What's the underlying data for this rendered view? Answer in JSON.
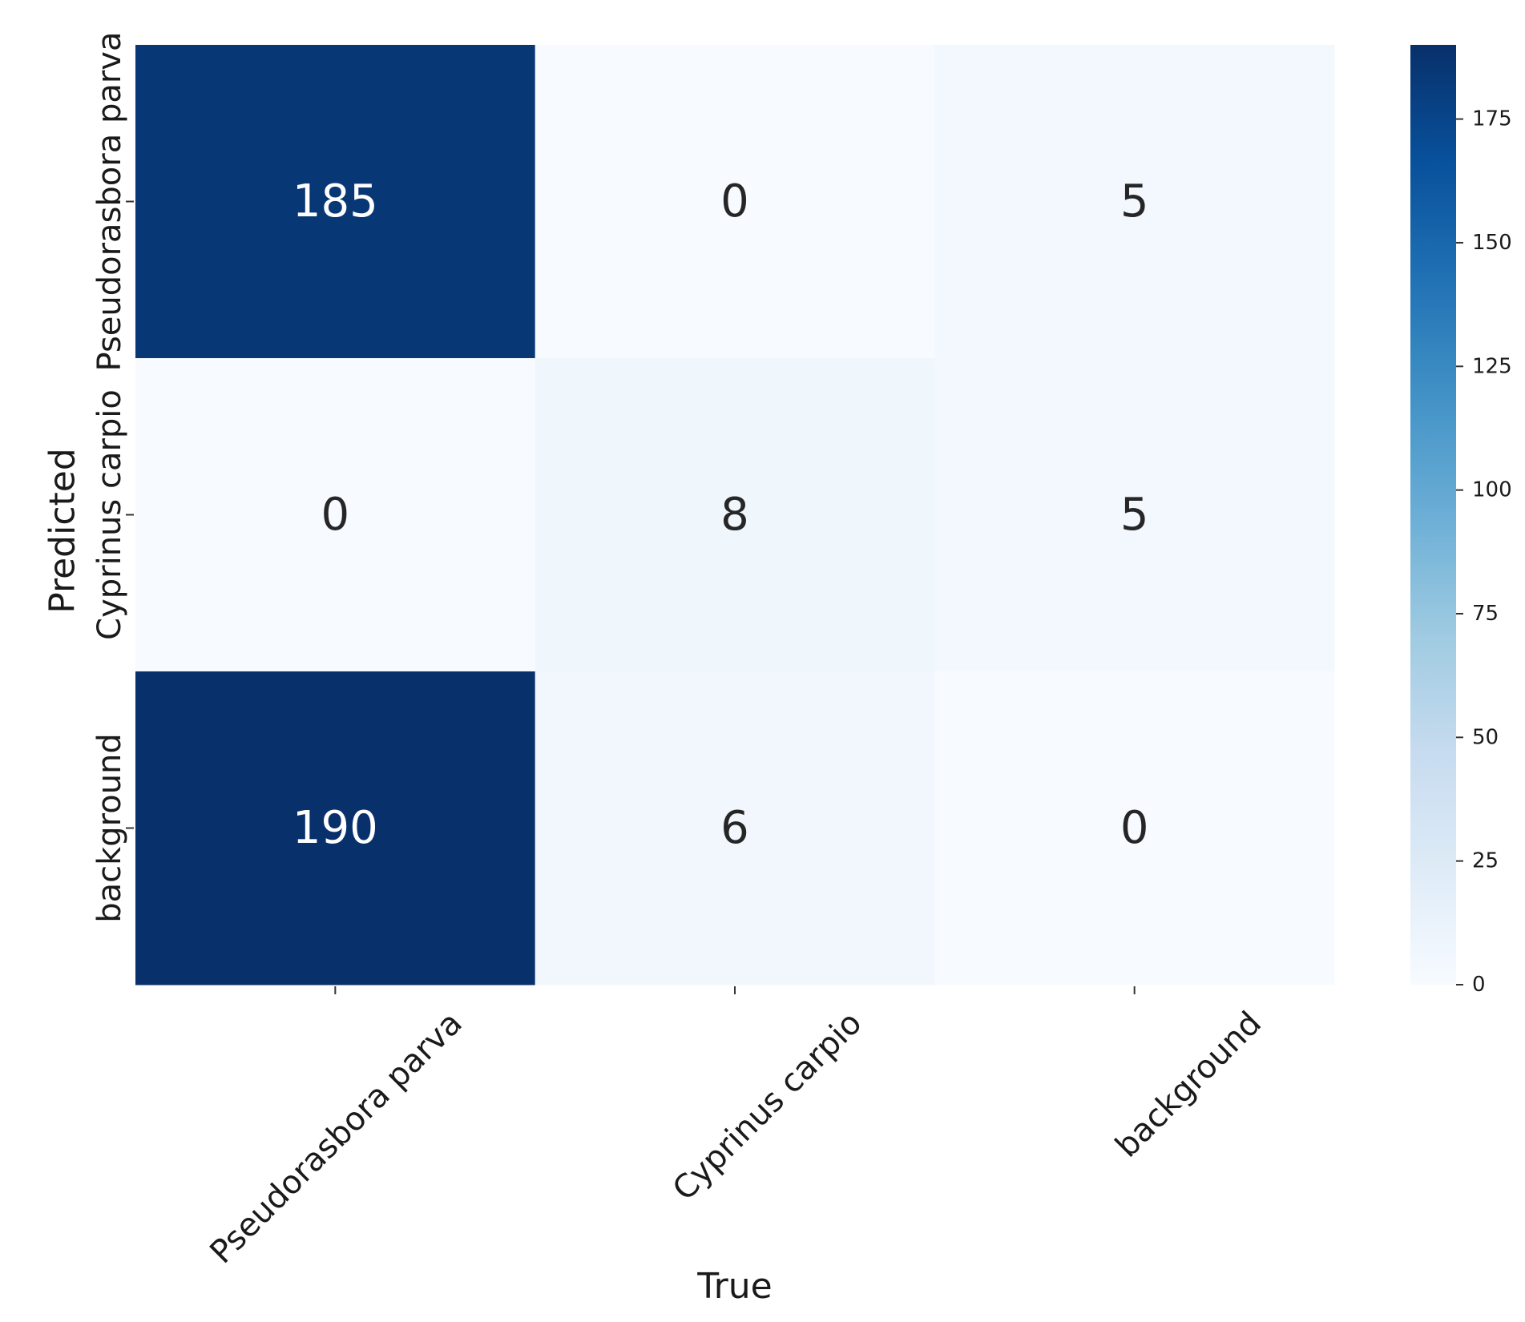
{
  "chart_data": {
    "type": "heatmap",
    "xlabel": "True",
    "ylabel": "Predicted",
    "x_categories": [
      "Pseudorasbora parva",
      "Cyprinus carpio",
      "background"
    ],
    "y_categories": [
      "Pseudorasbora parva",
      "Cyprinus carpio",
      "background"
    ],
    "values": [
      [
        185,
        0,
        5
      ],
      [
        0,
        8,
        5
      ],
      [
        190,
        6,
        0
      ]
    ],
    "colormap": "Blues",
    "colorbar": {
      "range": [
        0,
        190
      ],
      "ticks": [
        0,
        25,
        50,
        75,
        100,
        125,
        150,
        175
      ]
    }
  }
}
